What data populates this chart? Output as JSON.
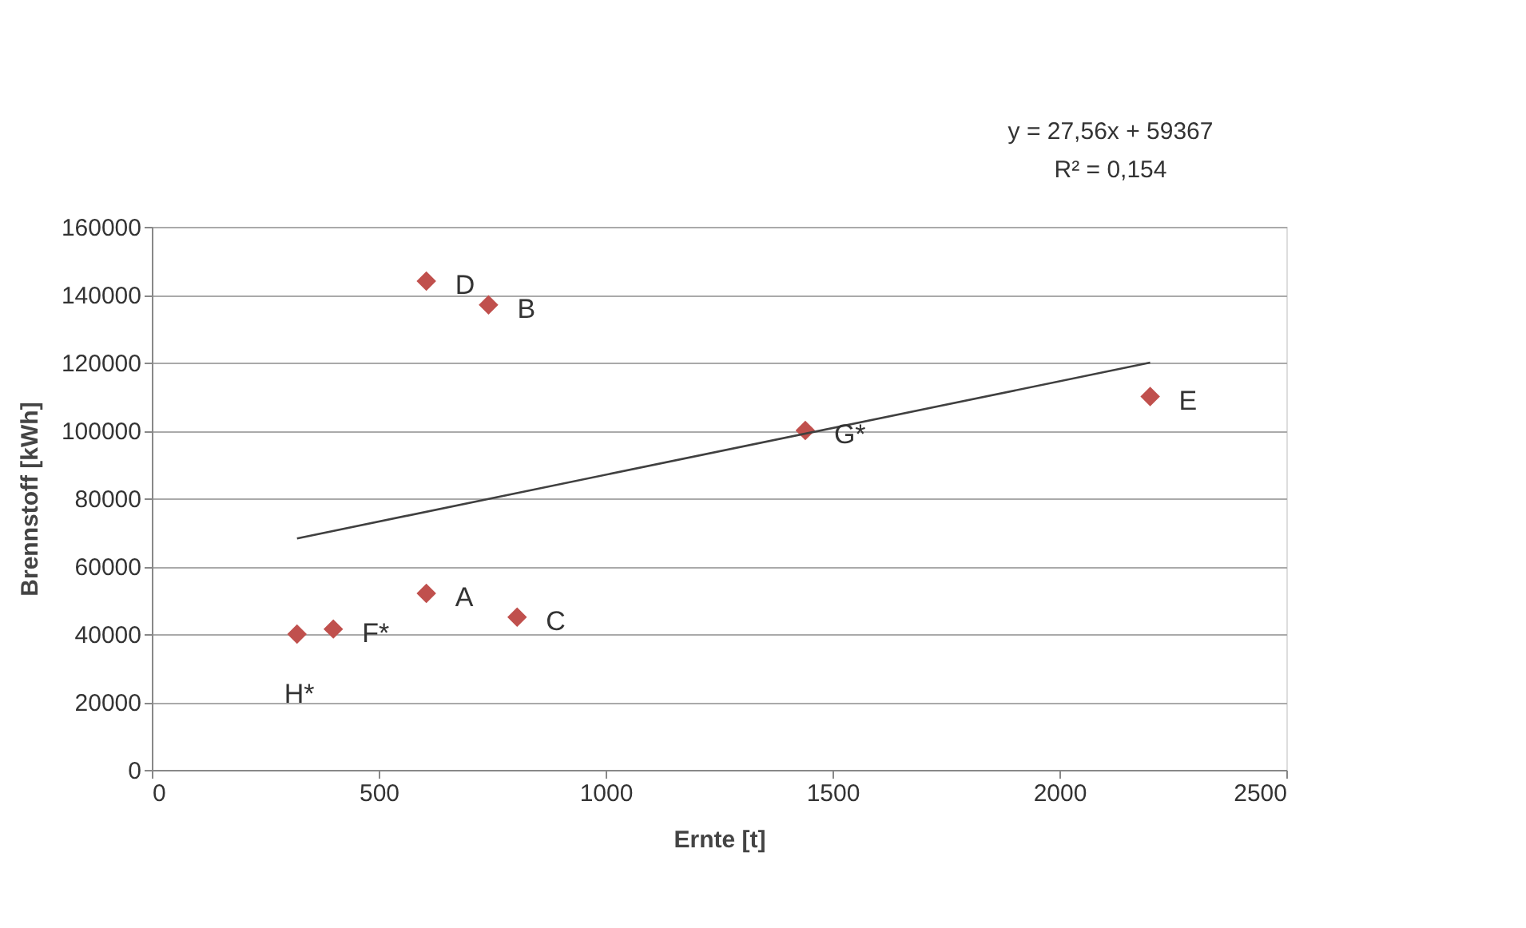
{
  "chart_data": {
    "type": "scatter",
    "xlabel": "Ernte [t]",
    "ylabel": "Brennstoff [kWh]",
    "xlim": [
      0,
      2500
    ],
    "xticks": [
      0,
      500,
      1000,
      1500,
      2000,
      2500
    ],
    "ylim": [
      0,
      160000
    ],
    "yticks": [
      0,
      20000,
      40000,
      60000,
      80000,
      100000,
      120000,
      140000,
      160000
    ],
    "grid": "y",
    "legend": false,
    "marker": "diamond",
    "series": [
      {
        "color": "#c0504d",
        "x": [
          605,
          742,
          805,
          605,
          2200,
          400,
          1440,
          320
        ],
        "values": [
          52000,
          137000,
          45000,
          144000,
          110000,
          41500,
          100000,
          40000
        ]
      },
      {
        "type": "line",
        "color": "#404040",
        "line_style": "solid",
        "marker": "none",
        "x": [
          320,
          2200
        ],
        "values": [
          68200,
          120000
        ]
      }
    ],
    "annotations": [
      {
        "text": "A",
        "x": 605,
        "y": 52000
      },
      {
        "text": "B",
        "x": 742,
        "y": 137000
      },
      {
        "text": "C",
        "x": 805,
        "y": 45000
      },
      {
        "text": "D",
        "x": 605,
        "y": 144000
      },
      {
        "text": "E",
        "x": 2200,
        "y": 110000
      },
      {
        "text": "F*",
        "x": 400,
        "y": 41500
      },
      {
        "text": "G*",
        "x": 1440,
        "y": 100000
      },
      {
        "text": "H*",
        "x": 320,
        "y": 40000
      },
      "y = 27,56x + 59367",
      "R² = 0,154"
    ]
  }
}
